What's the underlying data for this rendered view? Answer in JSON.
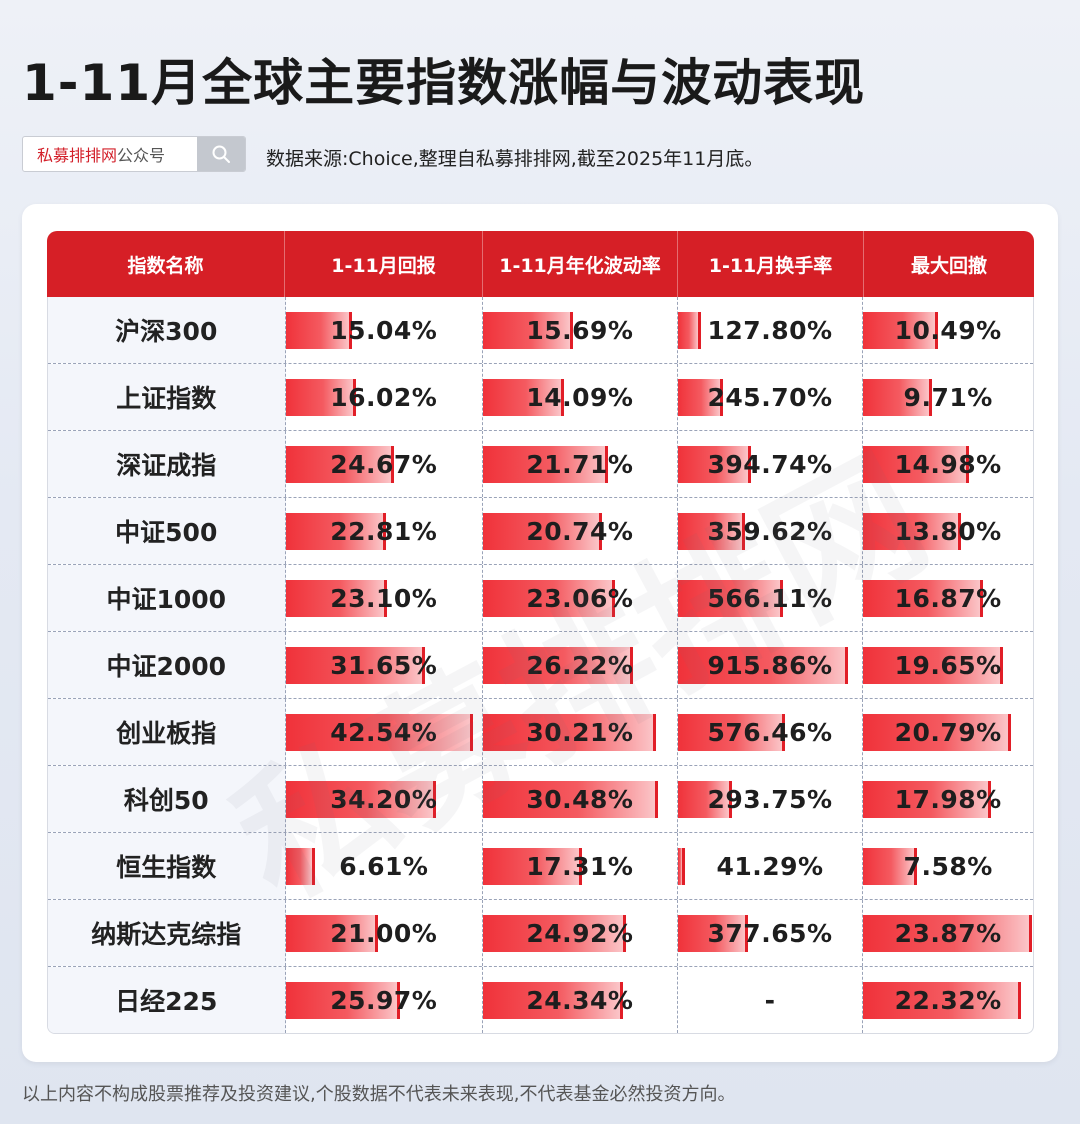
{
  "title": "1-11月全球主要指数涨幅与波动表现",
  "search": {
    "brand": "私募排排网",
    "suffix": "公众号"
  },
  "source": "数据来源:Choice,整理自私募排排网,截至2025年11月底。",
  "footer": "以上内容不构成股票推荐及投资建议,个股数据不代表未来表现,不代表基金必然投资方向。",
  "watermark": "私募排排网",
  "colors": {
    "accent": "#d61f26",
    "bar": "#f0323a"
  },
  "chart_data": {
    "type": "table",
    "columns": [
      "指数名称",
      "1-11月回报",
      "1-11月年化波动率",
      "1-11月换手率",
      "最大回撤"
    ],
    "rows": [
      {
        "name": "沪深300",
        "values": [
          15.04,
          15.69,
          127.8,
          10.49
        ],
        "labels": [
          "15.04%",
          "15.69%",
          "127.80%",
          "10.49%"
        ]
      },
      {
        "name": "上证指数",
        "values": [
          16.02,
          14.09,
          245.7,
          9.71
        ],
        "labels": [
          "16.02%",
          "14.09%",
          "245.70%",
          "9.71%"
        ]
      },
      {
        "name": "深证成指",
        "values": [
          24.67,
          21.71,
          394.74,
          14.98
        ],
        "labels": [
          "24.67%",
          "21.71%",
          "394.74%",
          "14.98%"
        ]
      },
      {
        "name": "中证500",
        "values": [
          22.81,
          20.74,
          359.62,
          13.8
        ],
        "labels": [
          "22.81%",
          "20.74%",
          "359.62%",
          "13.80%"
        ]
      },
      {
        "name": "中证1000",
        "values": [
          23.1,
          23.06,
          566.11,
          16.87
        ],
        "labels": [
          "23.10%",
          "23.06%",
          "566.11%",
          "16.87%"
        ]
      },
      {
        "name": "中证2000",
        "values": [
          31.65,
          26.22,
          915.86,
          19.65
        ],
        "labels": [
          "31.65%",
          "26.22%",
          "915.86%",
          "19.65%"
        ]
      },
      {
        "name": "创业板指",
        "values": [
          42.54,
          30.21,
          576.46,
          20.79
        ],
        "labels": [
          "42.54%",
          "30.21%",
          "576.46%",
          "20.79%"
        ]
      },
      {
        "name": "科创50",
        "values": [
          34.2,
          30.48,
          293.75,
          17.98
        ],
        "labels": [
          "34.20%",
          "30.48%",
          "293.75%",
          "17.98%"
        ]
      },
      {
        "name": "恒生指数",
        "values": [
          6.61,
          17.31,
          41.29,
          7.58
        ],
        "labels": [
          "6.61%",
          "17.31%",
          "41.29%",
          "7.58%"
        ]
      },
      {
        "name": "纳斯达克综指",
        "values": [
          21.0,
          24.92,
          377.65,
          23.87
        ],
        "labels": [
          "21.00%",
          "24.92%",
          "377.65%",
          "23.87%"
        ]
      },
      {
        "name": "日经225",
        "values": [
          25.97,
          24.34,
          null,
          22.32
        ],
        "labels": [
          "25.97%",
          "24.34%",
          "-",
          "22.32%"
        ]
      }
    ]
  }
}
